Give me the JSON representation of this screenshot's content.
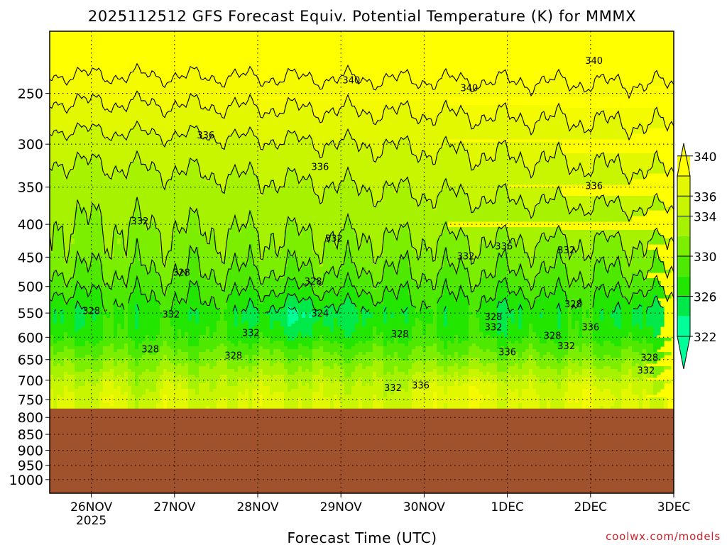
{
  "chart_data": {
    "type": "heatmap",
    "title": "2025112512 GFS Forecast Equiv. Potential Temperature (K) for MMMX",
    "xlabel": "Forecast Time (UTC)",
    "ylabel": "",
    "x_ticks": [
      {
        "label": "26NOV",
        "sublabel": "2025",
        "hour": 12
      },
      {
        "label": "27NOV",
        "sublabel": "",
        "hour": 36
      },
      {
        "label": "28NOV",
        "sublabel": "",
        "hour": 60
      },
      {
        "label": "29NOV",
        "sublabel": "",
        "hour": 84
      },
      {
        "label": "30NOV",
        "sublabel": "",
        "hour": 108
      },
      {
        "label": "1DEC",
        "sublabel": "",
        "hour": 132
      },
      {
        "label": "2DEC",
        "sublabel": "",
        "hour": 156
      },
      {
        "label": "3DEC",
        "sublabel": "",
        "hour": 180
      }
    ],
    "xlim_hours": [
      0,
      180
    ],
    "y_scale": "log-pressure",
    "ylim_hPa": [
      1050,
      200
    ],
    "y_ticks": [
      "250",
      "300",
      "350",
      "400",
      "450",
      "500",
      "550",
      "600",
      "650",
      "700",
      "750",
      "800",
      "850",
      "900",
      "950",
      "1000"
    ],
    "y_tick_values": [
      250,
      300,
      350,
      400,
      450,
      500,
      550,
      600,
      650,
      700,
      750,
      800,
      850,
      900,
      950,
      1000
    ],
    "grid": true,
    "ground_level_hPa": 775,
    "colorbar": {
      "levels": [
        322,
        324,
        326,
        328,
        330,
        332,
        334,
        336,
        338,
        340
      ],
      "labels": [
        "322",
        "326",
        "330",
        "334",
        "336",
        "340"
      ],
      "label_values": [
        322,
        326,
        330,
        334,
        336,
        340
      ],
      "colors": [
        "#00ff99",
        "#00e84a",
        "#22e600",
        "#4fe800",
        "#7cee00",
        "#a6f200",
        "#c8f500",
        "#e2f800",
        "#f4fa00",
        "#ffff00"
      ]
    },
    "colors": {
      "ground": "#a0522d",
      "contour": "#000000",
      "grid": "#000000"
    },
    "profile_theta_K": [
      {
        "hPa": 225,
        "theta": 341
      },
      {
        "hPa": 250,
        "theta": 339
      },
      {
        "hPa": 300,
        "theta": 336
      },
      {
        "hPa": 350,
        "theta": 334
      },
      {
        "hPa": 400,
        "theta": 332.5
      },
      {
        "hPa": 450,
        "theta": 331
      },
      {
        "hPa": 500,
        "theta": 329
      },
      {
        "hPa": 550,
        "theta": 327
      },
      {
        "hPa": 600,
        "theta": 328
      },
      {
        "hPa": 650,
        "theta": 331
      },
      {
        "hPa": 700,
        "theta": 334
      },
      {
        "hPa": 750,
        "theta": 336
      }
    ],
    "contour_labels": [
      {
        "text": "340",
        "hour": 87,
        "hPa": 238
      },
      {
        "text": "340",
        "hour": 121,
        "hPa": 245
      },
      {
        "text": "340",
        "hour": 157,
        "hPa": 222
      },
      {
        "text": "336",
        "hour": 45,
        "hPa": 290
      },
      {
        "text": "336",
        "hour": 78,
        "hPa": 325
      },
      {
        "text": "336",
        "hour": 157,
        "hPa": 348
      },
      {
        "text": "332",
        "hour": 26,
        "hPa": 395
      },
      {
        "text": "332",
        "hour": 82,
        "hPa": 420
      },
      {
        "text": "332",
        "hour": 120,
        "hPa": 448
      },
      {
        "text": "336",
        "hour": 131,
        "hPa": 432
      },
      {
        "text": "332",
        "hour": 149,
        "hPa": 438
      },
      {
        "text": "328",
        "hour": 38,
        "hPa": 475
      },
      {
        "text": "328",
        "hour": 76,
        "hPa": 490
      },
      {
        "text": "328",
        "hour": 12,
        "hPa": 545
      },
      {
        "text": "332",
        "hour": 35,
        "hPa": 552
      },
      {
        "text": "324",
        "hour": 78,
        "hPa": 550
      },
      {
        "text": "332",
        "hour": 58,
        "hPa": 590
      },
      {
        "text": "328",
        "hour": 29,
        "hPa": 625
      },
      {
        "text": "328",
        "hour": 53,
        "hPa": 640
      },
      {
        "text": "328",
        "hour": 101,
        "hPa": 592
      },
      {
        "text": "328",
        "hour": 128,
        "hPa": 557
      },
      {
        "text": "332",
        "hour": 128,
        "hPa": 578
      },
      {
        "text": "328",
        "hour": 151,
        "hPa": 532
      },
      {
        "text": "336",
        "hour": 156,
        "hPa": 578
      },
      {
        "text": "328",
        "hour": 145,
        "hPa": 596
      },
      {
        "text": "332",
        "hour": 149,
        "hPa": 618
      },
      {
        "text": "336",
        "hour": 132,
        "hPa": 632
      },
      {
        "text": "328",
        "hour": 173,
        "hPa": 645
      },
      {
        "text": "332",
        "hour": 172,
        "hPa": 675
      },
      {
        "text": "332",
        "hour": 99,
        "hPa": 718
      },
      {
        "text": "336",
        "hour": 107,
        "hPa": 712
      }
    ]
  },
  "footer": {
    "credit": "coolwx.com/models"
  }
}
